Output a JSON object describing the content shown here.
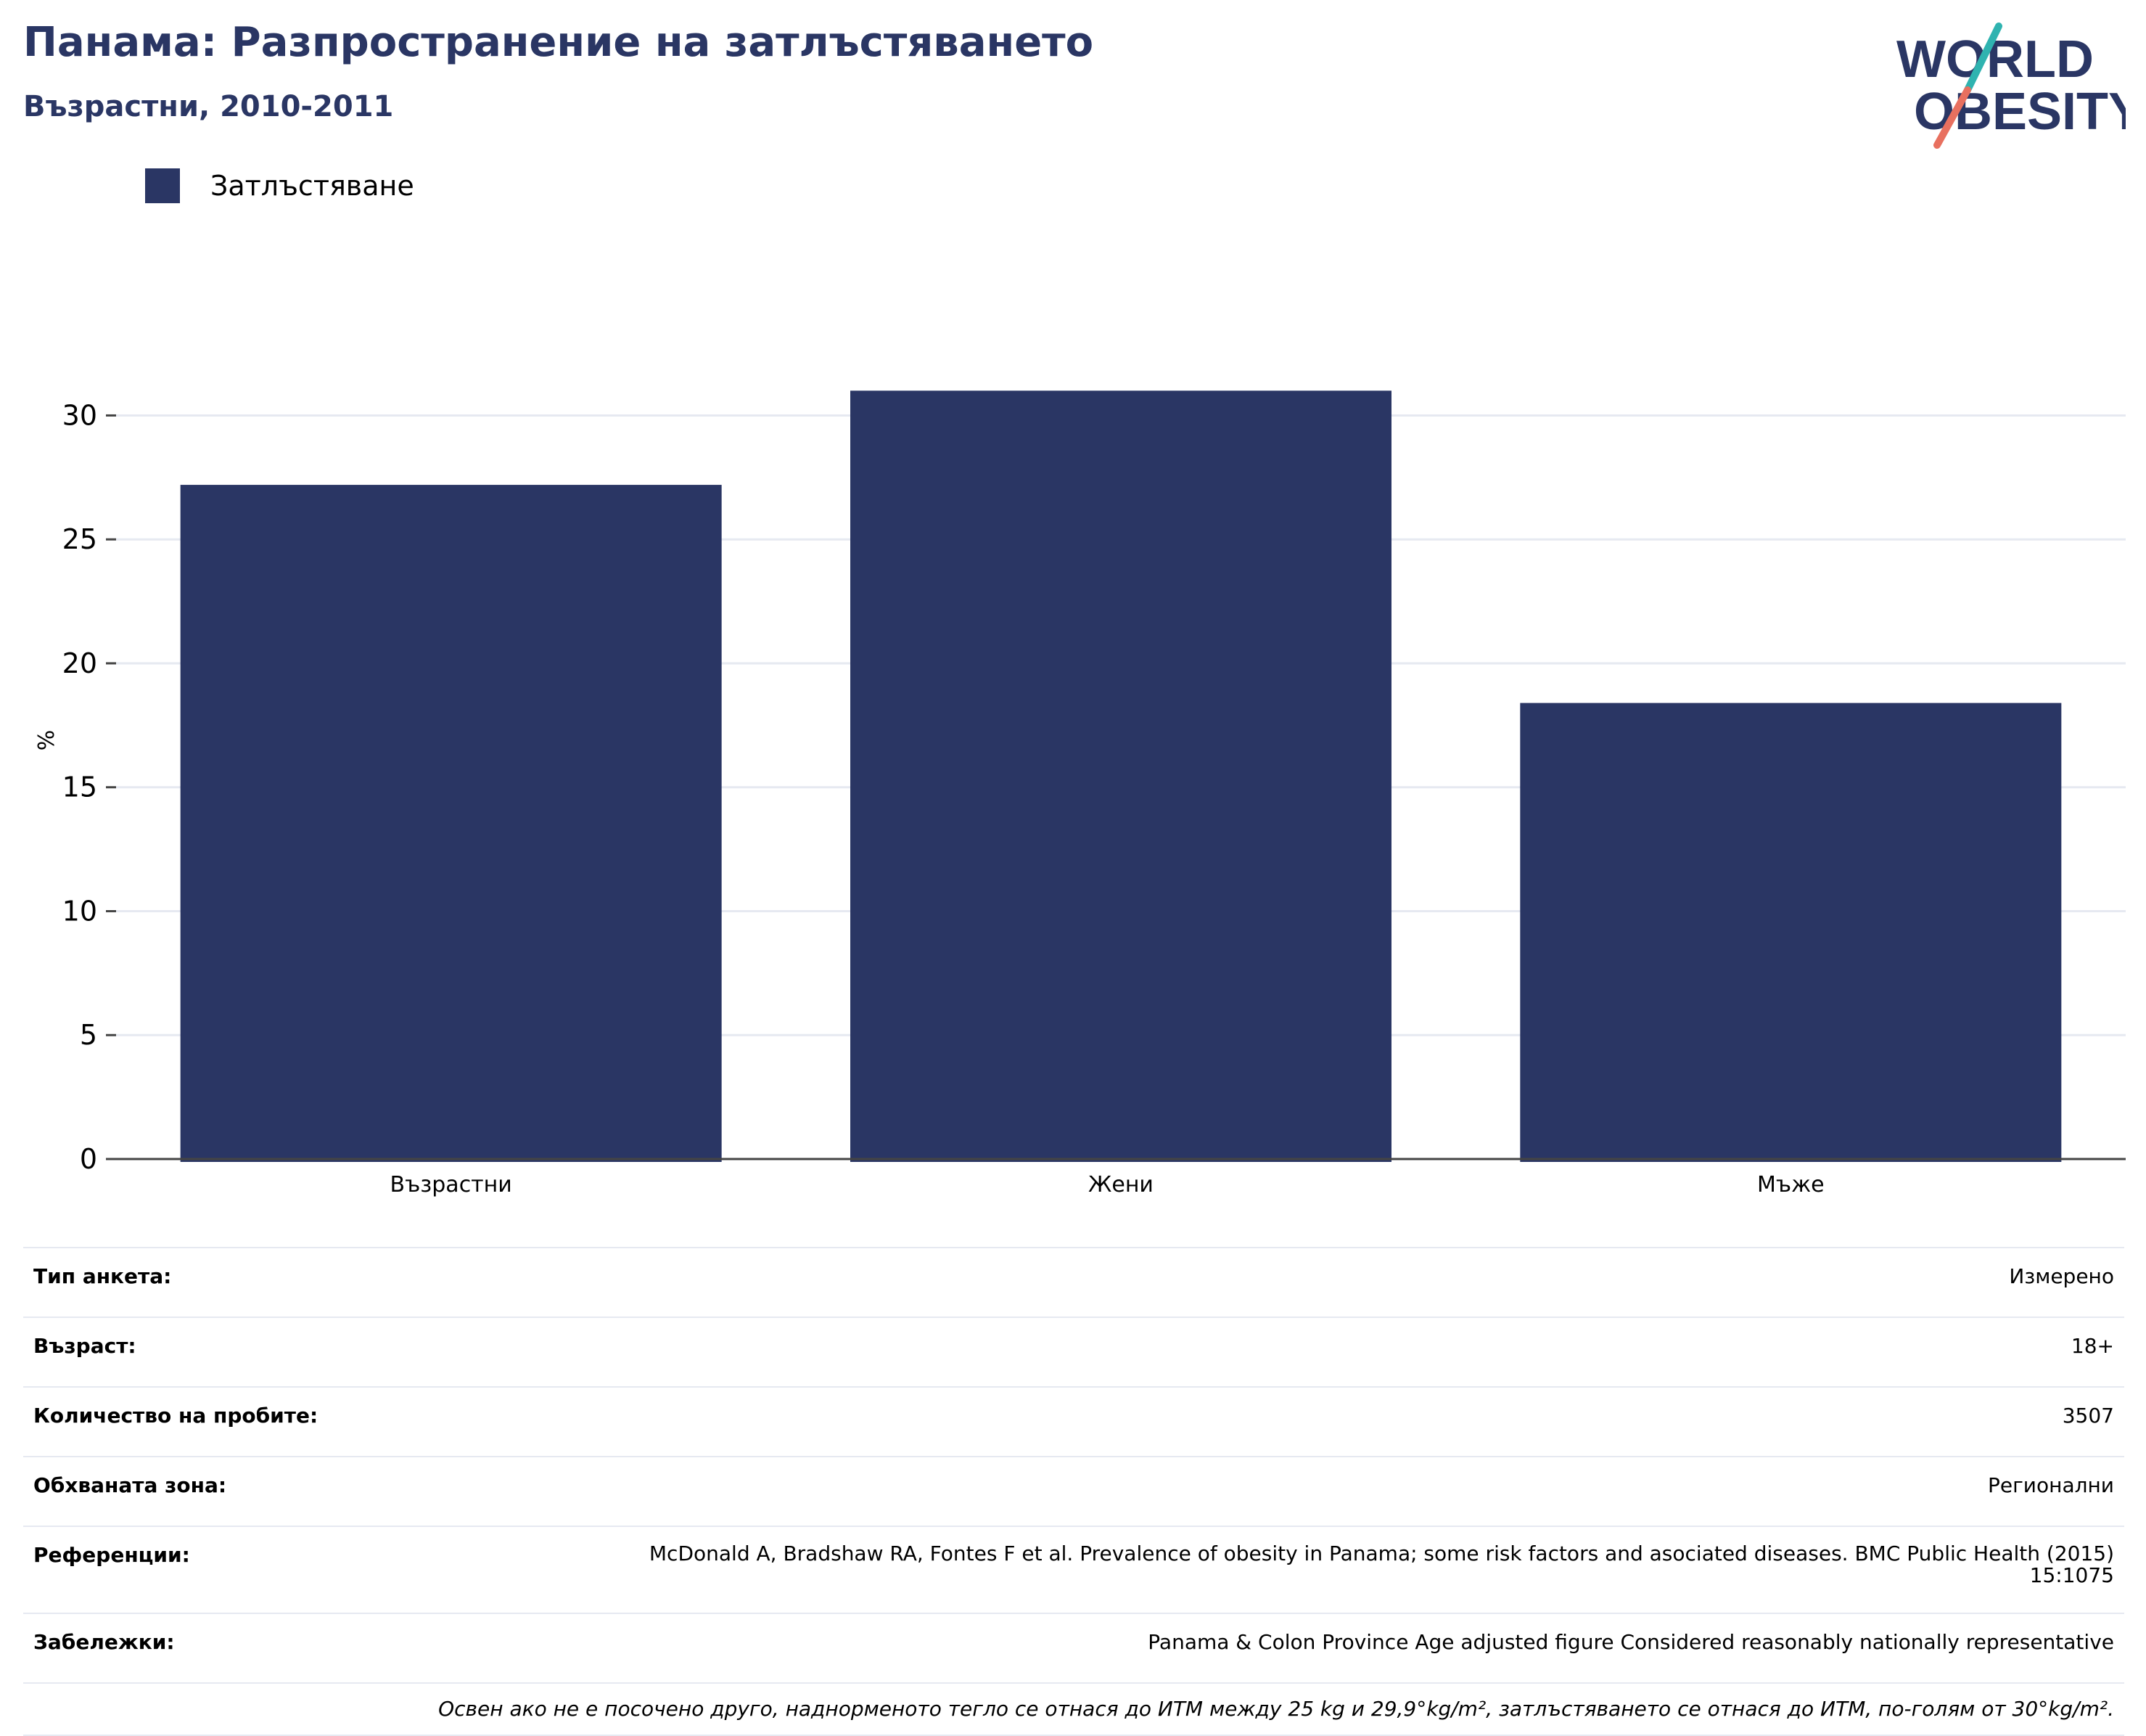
{
  "header": {
    "title": "Панама: Разпространение на затлъстяването",
    "subtitle": "Възрастни, 2010-2011"
  },
  "logo": {
    "line1": "WORLD",
    "line2": "OBESITY",
    "colors": {
      "text": "#2a3664",
      "slash_top": "#2fb3b0",
      "slash_bottom": "#e8705f"
    }
  },
  "legend": {
    "label": "Затлъстяване",
    "color": "#2a3664"
  },
  "chart_data": {
    "type": "bar",
    "categories": [
      "Възрастни",
      "Жени",
      "Мъже"
    ],
    "series": [
      {
        "name": "Затлъстяване",
        "values": [
          27.2,
          31.0,
          18.4
        ],
        "color": "#2a3664"
      }
    ],
    "title": "Панама: Разпространение на затлъстяването",
    "subtitle": "Възрастни, 2010-2011",
    "xlabel": "",
    "ylabel": "%",
    "ylim": [
      0,
      33
    ],
    "yticks": [
      0,
      5,
      10,
      15,
      20,
      25,
      30
    ],
    "grid": true,
    "legend_position": "top-left"
  },
  "info": {
    "rows": [
      {
        "key": "Тип анкета:",
        "value": "Измерено"
      },
      {
        "key": "Възраст:",
        "value": "18+"
      },
      {
        "key": "Количество на пробите:",
        "value": "3507"
      },
      {
        "key": "Обхваната зона:",
        "value": "Регионални"
      },
      {
        "key": "Референции:",
        "value": "McDonald A, Bradshaw RA, Fontes F et al. Prevalence of obesity in Panama; some risk factors and asociated diseases. BMC Public Health (2015) 15:1075"
      },
      {
        "key": "Забележки:",
        "value": "Panama & Colon Province Age adjusted figure Considered reasonably nationally representative"
      }
    ],
    "footnote": "Освен ако не е посочено друго, наднорменото тегло се отнася до ИТМ между 25 kg и 29,9°kg/m², затлъстяването се отнася до ИТМ, по-голям от 30°kg/m²."
  }
}
